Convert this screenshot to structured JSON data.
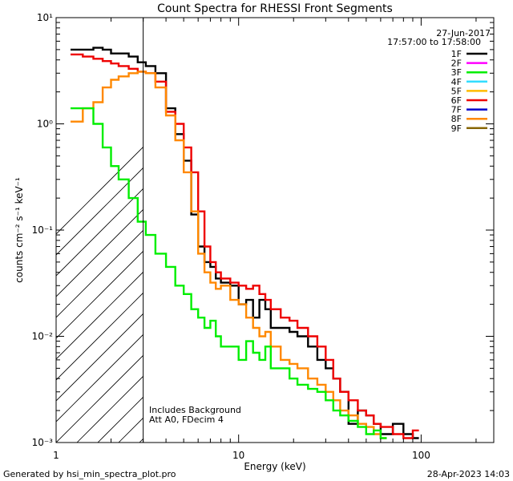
{
  "chart_data": {
    "type": "line",
    "title": "Count Spectra for RHESSI Front Segments",
    "xlabel": "Energy (keV)",
    "ylabel": "counts cm⁻² s⁻¹ keV⁻¹",
    "xscale": "log",
    "yscale": "log",
    "xlim": [
      1,
      250
    ],
    "ylim": [
      0.001,
      10
    ],
    "x_ticks": [
      1,
      10,
      100
    ],
    "x_tick_labels": [
      "1",
      "10",
      "100"
    ],
    "y_ticks": [
      0.001,
      0.01,
      0.1,
      1,
      10
    ],
    "y_tick_labels": [
      "10⁻³",
      "10⁻²",
      "10⁻¹",
      "10⁰",
      "10¹"
    ],
    "date": "27-Jun-2017",
    "time_range": "17:57:00 to 17:58:00",
    "legend_position": "top-right",
    "legend": [
      {
        "name": "1F",
        "color": "#000000"
      },
      {
        "name": "2F",
        "color": "#ff00ff"
      },
      {
        "name": "3F",
        "color": "#00ee00"
      },
      {
        "name": "4F",
        "color": "#33ddff"
      },
      {
        "name": "5F",
        "color": "#ffbb00"
      },
      {
        "name": "6F",
        "color": "#ee0000"
      },
      {
        "name": "7F",
        "color": "#0000cc"
      },
      {
        "name": "8F",
        "color": "#ff8800"
      },
      {
        "name": "9F",
        "color": "#886600"
      }
    ],
    "threshold_energy": 3,
    "annotations": [
      "Includes Background",
      "Att A0, FDecim 4"
    ],
    "series": [
      {
        "name": "1F",
        "color": "#000000",
        "x": [
          1.2,
          1.4,
          1.6,
          1.8,
          2.0,
          2.2,
          2.5,
          2.8,
          3.1,
          3.5,
          4.0,
          4.5,
          5.0,
          5.5,
          6.0,
          6.5,
          7.0,
          7.5,
          8.0,
          9.0,
          10,
          11,
          12,
          13,
          14,
          15,
          17,
          19,
          21,
          24,
          27,
          30,
          33,
          36,
          40,
          45,
          50,
          55,
          60,
          70,
          80,
          90
        ],
        "y": [
          5.0,
          5.0,
          5.2,
          5.0,
          4.6,
          4.6,
          4.3,
          3.8,
          3.5,
          3.0,
          1.4,
          0.8,
          0.45,
          0.14,
          0.07,
          0.05,
          0.045,
          0.035,
          0.032,
          0.03,
          0.02,
          0.022,
          0.015,
          0.022,
          0.018,
          0.012,
          0.012,
          0.011,
          0.01,
          0.008,
          0.006,
          0.005,
          0.004,
          0.003,
          0.0015,
          0.002,
          0.0018,
          0.0015,
          0.0012,
          0.0015,
          0.0012,
          0.0011
        ]
      },
      {
        "name": "6F",
        "color": "#ee0000",
        "x": [
          1.2,
          1.4,
          1.6,
          1.8,
          2.0,
          2.2,
          2.5,
          2.8,
          3.1,
          3.5,
          4.0,
          4.5,
          5.0,
          5.5,
          6.0,
          6.5,
          7.0,
          7.5,
          8.0,
          9.0,
          10,
          11,
          12,
          13,
          14,
          15,
          17,
          19,
          21,
          24,
          27,
          30,
          33,
          36,
          40,
          45,
          50,
          55,
          60,
          70,
          80,
          90
        ],
        "y": [
          4.5,
          4.3,
          4.1,
          3.9,
          3.7,
          3.5,
          3.3,
          3.1,
          3.0,
          2.5,
          1.3,
          1.0,
          0.6,
          0.35,
          0.15,
          0.07,
          0.05,
          0.04,
          0.035,
          0.032,
          0.03,
          0.028,
          0.03,
          0.025,
          0.022,
          0.018,
          0.015,
          0.014,
          0.012,
          0.01,
          0.008,
          0.006,
          0.004,
          0.003,
          0.0025,
          0.002,
          0.0018,
          0.0015,
          0.0014,
          0.0012,
          0.0011,
          0.0013
        ]
      },
      {
        "name": "8F",
        "color": "#ff8800",
        "x": [
          1.2,
          1.4,
          1.6,
          1.8,
          2.0,
          2.2,
          2.5,
          2.8,
          3.1,
          3.5,
          4.0,
          4.5,
          5.0,
          5.5,
          6.0,
          6.5,
          7.0,
          7.5,
          8.0,
          9.0,
          10,
          11,
          12,
          13,
          14,
          15,
          17,
          19,
          21,
          24,
          27,
          30,
          33,
          36,
          40,
          45,
          50,
          55,
          60
        ],
        "y": [
          1.05,
          1.4,
          1.6,
          2.2,
          2.6,
          2.8,
          3.0,
          3.1,
          3.0,
          2.2,
          1.2,
          0.7,
          0.35,
          0.15,
          0.06,
          0.04,
          0.032,
          0.028,
          0.03,
          0.022,
          0.02,
          0.015,
          0.012,
          0.01,
          0.011,
          0.008,
          0.006,
          0.0055,
          0.005,
          0.004,
          0.0035,
          0.003,
          0.0025,
          0.002,
          0.0018,
          0.0015,
          0.0014,
          0.0012,
          0.0011
        ]
      },
      {
        "name": "3F",
        "color": "#00ee00",
        "x": [
          1.2,
          1.4,
          1.6,
          1.8,
          2.0,
          2.2,
          2.5,
          2.8,
          3.1,
          3.5,
          4.0,
          4.5,
          5.0,
          5.5,
          6.0,
          6.5,
          7.0,
          7.5,
          8.0,
          9.0,
          10,
          11,
          12,
          13,
          14,
          15,
          17,
          19,
          21,
          24,
          27,
          30,
          33,
          36,
          40,
          45,
          50,
          55,
          60
        ],
        "y": [
          1.4,
          1.4,
          1.0,
          0.6,
          0.4,
          0.3,
          0.2,
          0.12,
          0.09,
          0.06,
          0.045,
          0.03,
          0.025,
          0.018,
          0.015,
          0.012,
          0.014,
          0.01,
          0.008,
          0.008,
          0.006,
          0.009,
          0.007,
          0.006,
          0.008,
          0.005,
          0.005,
          0.004,
          0.0035,
          0.0032,
          0.003,
          0.0025,
          0.002,
          0.0018,
          0.0016,
          0.0014,
          0.0012,
          0.0013,
          0.0011
        ]
      }
    ]
  },
  "footer": {
    "left": "Generated by hsi_min_spectra_plot.pro",
    "right": "28-Apr-2023 14:03"
  }
}
